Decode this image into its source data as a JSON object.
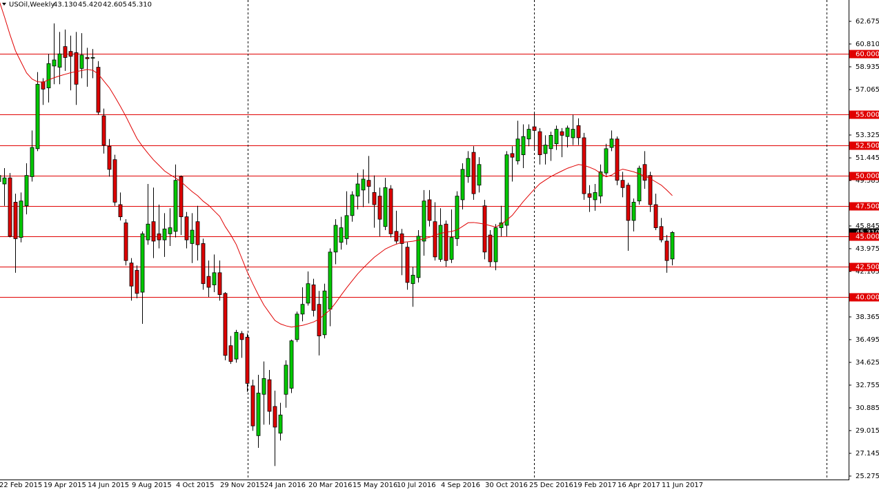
{
  "chart_data": {
    "type": "candlestick",
    "title": "USOil,Weekly",
    "ohlc_labels": [
      "43.130",
      "45.420",
      "42.605",
      "45.310"
    ],
    "categories": [
      "22 Feb 2015",
      null,
      null,
      null,
      null,
      null,
      null,
      null,
      "19 Apr 2015",
      null,
      null,
      null,
      null,
      null,
      null,
      null,
      "14 Jun 2015",
      null,
      null,
      null,
      null,
      null,
      null,
      null,
      "9 Aug 2015",
      null,
      null,
      null,
      null,
      null,
      null,
      null,
      "4 Oct 2015",
      null,
      null,
      null,
      null,
      null,
      null,
      null,
      "29 Nov 2015",
      null,
      null,
      null,
      null,
      null,
      null,
      null,
      "24 Jan 2016",
      null,
      null,
      null,
      null,
      null,
      null,
      null,
      "20 Mar 2016",
      null,
      null,
      null,
      null,
      null,
      null,
      null,
      "15 May 2016",
      null,
      null,
      null,
      null,
      null,
      null,
      null,
      "10 Jul 2016",
      null,
      null,
      null,
      null,
      null,
      null,
      null,
      "4 Sep 2016",
      null,
      null,
      null,
      null,
      null,
      null,
      null,
      "30 Oct 2016",
      null,
      null,
      null,
      null,
      null,
      null,
      null,
      "25 Dec 2016",
      null,
      null,
      null,
      null,
      null,
      null,
      null,
      "19 Feb 2017",
      null,
      null,
      null,
      null,
      null,
      null,
      null,
      "16 Apr 2017",
      null,
      null,
      null,
      null,
      null,
      null,
      null,
      "11 Jun 2017",
      null,
      null
    ],
    "open": [
      49.5,
      49.3,
      49.8,
      47.8,
      44.9,
      47.5,
      49.9,
      52.2,
      57.7,
      57.2,
      59.0,
      58.9,
      60.6,
      60.2,
      60.1,
      58.8,
      59.7,
      59.7,
      58.9,
      54.9,
      52.4,
      51.3,
      47.6,
      46.1,
      42.8,
      42.2,
      40.4,
      44.7,
      46.2,
      45.2,
      44.7,
      45.2,
      45.4,
      49.9,
      46.6,
      44.4,
      46.2,
      44.4,
      41.7,
      41.0,
      42.0,
      40.3,
      36.0,
      34.9,
      37.0,
      36.7,
      32.7,
      28.6,
      32.0,
      33.2,
      31.0,
      28.8,
      32.0,
      32.5,
      36.5,
      38.6,
      39.5,
      41.0,
      39.4,
      36.9,
      39.0,
      43.7,
      44.5,
      44.8,
      46.7,
      48.3,
      48.8,
      49.6,
      48.6,
      48.3,
      45.8,
      48.9,
      45.4,
      45.2,
      44.1,
      41.1,
      41.6,
      44.6,
      48.0,
      46.2,
      43.1,
      46.0,
      43.1,
      44.8,
      48.0,
      49.9,
      51.9,
      49.2,
      47.5,
      45.1,
      42.9,
      45.7,
      45.9,
      51.8,
      51.2,
      51.7,
      53.0,
      54.0,
      53.6,
      51.8,
      52.2,
      52.6,
      53.6,
      53.2,
      53.1,
      54.1,
      53.1,
      48.5,
      48.0,
      48.3,
      50.2,
      52.3,
      53.0,
      49.6,
      49.2,
      46.3,
      47.9,
      50.9,
      50.0,
      47.6,
      45.8,
      44.6,
      43.13
    ],
    "high": [
      52.5,
      50.6,
      50.2,
      48.5,
      48.6,
      51.0,
      53.7,
      58.5,
      58.0,
      60.0,
      62.5,
      61.8,
      62.0,
      61.5,
      61.8,
      61.7,
      60.5,
      60.4,
      59.4,
      55.5,
      53.0,
      51.7,
      48.6,
      46.4,
      43.2,
      42.6,
      45.4,
      49.3,
      49.0,
      47.6,
      46.9,
      47.3,
      50.9,
      50.0,
      47.0,
      46.9,
      47.5,
      44.8,
      43.0,
      43.5,
      43.0,
      40.4,
      36.8,
      37.3,
      37.2,
      37.0,
      33.2,
      33.6,
      34.7,
      34.0,
      32.3,
      31.3,
      34.8,
      36.5,
      38.8,
      40.8,
      42.1,
      41.5,
      40.5,
      41.1,
      44.0,
      46.4,
      46.6,
      48.7,
      48.7,
      50.2,
      50.5,
      51.6,
      50.0,
      49.0,
      49.8,
      49.2,
      47.1,
      45.6,
      44.5,
      42.5,
      45.5,
      48.8,
      48.8,
      47.8,
      47.3,
      46.3,
      47.2,
      48.7,
      51.0,
      52.0,
      52.4,
      51.5,
      48.0,
      45.5,
      46.0,
      47.5,
      52.0,
      52.4,
      54.5,
      54.2,
      54.2,
      55.2,
      53.9,
      53.3,
      53.6,
      54.1,
      53.9,
      54.1,
      55.0,
      54.7,
      53.5,
      49.2,
      49.3,
      50.9,
      52.6,
      53.7,
      53.2,
      50.3,
      49.4,
      48.1,
      50.8,
      52.0,
      50.3,
      48.5,
      46.5,
      45.1,
      45.42
    ],
    "low": [
      48.5,
      47.5,
      44.9,
      42.0,
      44.5,
      46.8,
      49.5,
      52.0,
      55.8,
      56.0,
      57.5,
      57.5,
      58.6,
      57.0,
      55.8,
      58.0,
      57.3,
      58.0,
      55.0,
      51.8,
      49.9,
      47.5,
      46.3,
      42.6,
      39.7,
      39.9,
      37.8,
      44.3,
      43.2,
      44.0,
      43.3,
      44.2,
      44.9,
      45.1,
      44.0,
      42.8,
      43.0,
      40.6,
      40.0,
      40.4,
      39.7,
      34.8,
      34.5,
      34.6,
      35.0,
      32.2,
      29.0,
      27.6,
      29.5,
      29.5,
      26.1,
      28.2,
      30.9,
      32.1,
      36.3,
      38.0,
      39.3,
      38.4,
      35.2,
      36.6,
      37.6,
      42.7,
      43.9,
      44.3,
      46.2,
      47.2,
      47.4,
      47.7,
      45.7,
      45.0,
      45.5,
      44.9,
      44.4,
      41.8,
      40.6,
      39.2,
      41.2,
      43.4,
      45.8,
      43.0,
      42.9,
      42.5,
      42.8,
      44.2,
      47.2,
      49.4,
      48.0,
      48.6,
      43.1,
      42.5,
      42.2,
      45.0,
      45.0,
      49.5,
      50.9,
      50.6,
      52.4,
      52.1,
      50.9,
      50.9,
      51.2,
      52.1,
      51.5,
      52.3,
      52.5,
      52.5,
      48.0,
      47.0,
      47.1,
      47.7,
      50.0,
      52.0,
      49.2,
      48.2,
      43.8,
      45.4,
      47.6,
      48.9,
      47.0,
      45.5,
      44.5,
      42.0,
      42.605
    ],
    "close": [
      50.0,
      49.8,
      45.0,
      44.8,
      47.9,
      50.0,
      52.3,
      57.5,
      57.1,
      59.2,
      59.5,
      60.0,
      59.7,
      59.8,
      57.5,
      59.9,
      59.6,
      59.7,
      55.2,
      52.5,
      50.5,
      47.8,
      46.6,
      43.0,
      40.9,
      40.3,
      45.2,
      46.0,
      44.6,
      44.7,
      45.6,
      45.7,
      49.6,
      46.6,
      44.7,
      45.5,
      44.3,
      41.1,
      40.8,
      42.0,
      40.2,
      35.2,
      34.7,
      37.1,
      36.5,
      32.9,
      29.4,
      32.1,
      33.3,
      30.6,
      29.3,
      30.3,
      34.4,
      36.4,
      38.6,
      39.4,
      41.1,
      38.9,
      36.8,
      40.5,
      43.7,
      45.9,
      45.7,
      46.7,
      48.4,
      49.3,
      49.7,
      49.1,
      47.6,
      46.4,
      49.0,
      45.2,
      44.6,
      44.4,
      41.2,
      41.8,
      45.0,
      47.9,
      46.3,
      43.3,
      45.9,
      43.0,
      44.9,
      48.3,
      50.5,
      51.4,
      48.5,
      50.9,
      43.7,
      42.9,
      45.7,
      46.1,
      51.7,
      51.5,
      53.0,
      53.2,
      53.8,
      53.7,
      51.7,
      52.5,
      53.3,
      53.8,
      53.3,
      53.9,
      53.8,
      53.1,
      48.5,
      48.2,
      48.6,
      50.3,
      52.2,
      53.0,
      49.6,
      49.0,
      46.3,
      47.8,
      50.6,
      49.6,
      47.6,
      45.7,
      44.7,
      43.0,
      45.31
    ],
    "up_color": "#00c800",
    "down_color": "#dd0000",
    "ma": {
      "color": "#e00000",
      "values": [
        64.43,
        63.04,
        61.57,
        60.24,
        59.33,
        58.43,
        57.93,
        57.7,
        57.68,
        57.86,
        58.04,
        58.19,
        58.32,
        58.45,
        58.54,
        58.63,
        58.72,
        58.65,
        58.34,
        57.77,
        57.21,
        56.47,
        55.68,
        54.85,
        53.94,
        53.04,
        52.39,
        51.82,
        51.28,
        50.83,
        50.37,
        50.06,
        49.79,
        49.48,
        49.07,
        48.67,
        48.33,
        47.88,
        47.54,
        47.08,
        46.63,
        45.79,
        45.11,
        44.31,
        43.18,
        42.05,
        41.08,
        40.17,
        39.34,
        38.7,
        38.07,
        37.79,
        37.63,
        37.53,
        37.6,
        37.67,
        37.8,
        37.95,
        38.18,
        38.57,
        38.95,
        39.52,
        40.16,
        40.77,
        41.34,
        41.91,
        42.39,
        42.84,
        43.27,
        43.61,
        43.95,
        44.17,
        44.35,
        44.5,
        44.54,
        44.59,
        44.68,
        44.79,
        44.92,
        45.08,
        45.24,
        45.33,
        45.4,
        45.52,
        45.81,
        46.11,
        46.13,
        46.07,
        45.99,
        45.87,
        45.76,
        45.99,
        46.33,
        46.72,
        47.29,
        47.86,
        48.37,
        48.87,
        49.32,
        49.62,
        49.91,
        50.15,
        50.37,
        50.59,
        50.75,
        50.9,
        50.83,
        50.67,
        50.48,
        50.18,
        49.89,
        50.03,
        50.33,
        50.52,
        50.41,
        50.3,
        50.13,
        49.95,
        49.74,
        49.47,
        49.2,
        48.79,
        48.34
      ]
    },
    "levels_color": "#e00000",
    "levels": [
      {
        "value": 60,
        "label": "60.000"
      },
      {
        "value": 55,
        "label": "55.000"
      },
      {
        "value": 52.5,
        "label": "52.500"
      },
      {
        "value": 50,
        "label": "50.000"
      },
      {
        "value": 47.5,
        "label": "47.500"
      },
      {
        "value": 45,
        "label": "45.000"
      },
      {
        "value": 42.5,
        "label": "42.500"
      },
      {
        "value": 40,
        "label": "40.000"
      }
    ],
    "ylim": [
      24.99,
      64.43
    ],
    "yticks": [
      {
        "value": 62.675,
        "label": "62.675"
      },
      {
        "value": 60.81,
        "label": "60.810"
      },
      {
        "value": 58.935,
        "label": "58.935"
      },
      {
        "value": 57.065,
        "label": "57.065"
      },
      {
        "value": 53.325,
        "label": "53.325"
      },
      {
        "value": 51.445,
        "label": "51.445"
      },
      {
        "value": 49.585,
        "label": "49.585"
      },
      {
        "value": 45.845,
        "label": "45.845"
      },
      {
        "value": 43.975,
        "label": "43.975"
      },
      {
        "value": 42.105,
        "label": "42.105"
      },
      {
        "value": 38.365,
        "label": "38.365"
      },
      {
        "value": 36.495,
        "label": "36.495"
      },
      {
        "value": 34.625,
        "label": "34.625"
      },
      {
        "value": 32.755,
        "label": "32.755"
      },
      {
        "value": 30.885,
        "label": "30.885"
      },
      {
        "value": 29.015,
        "label": "29.015"
      },
      {
        "value": 27.145,
        "label": "27.145"
      },
      {
        "value": 25.275,
        "label": "25.275"
      }
    ]
  }
}
